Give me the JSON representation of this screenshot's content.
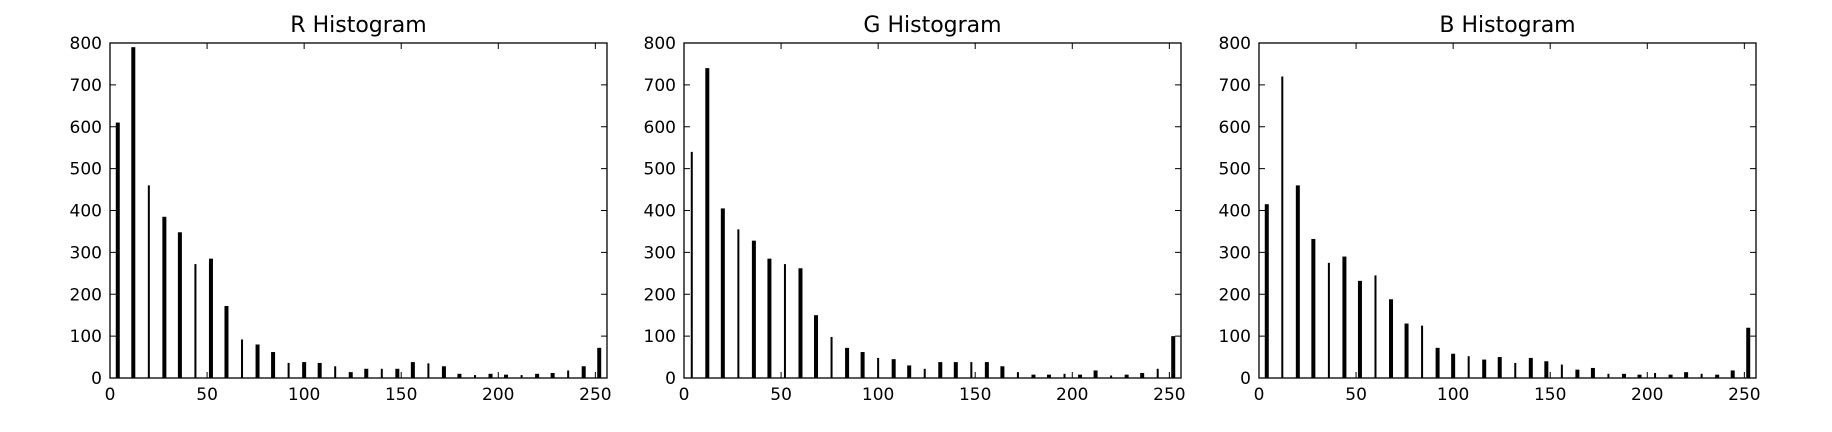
{
  "chart_data": [
    {
      "type": "bar",
      "title": "R Histogram",
      "xlabel": "",
      "ylabel": "",
      "xlim": [
        0,
        256
      ],
      "ylim": [
        0,
        800
      ],
      "xticks": [
        0,
        50,
        100,
        150,
        200,
        250
      ],
      "yticks": [
        0,
        100,
        200,
        300,
        400,
        500,
        600,
        700,
        800
      ],
      "grid": false,
      "x": [
        4,
        12,
        20,
        28,
        36,
        44,
        52,
        60,
        68,
        76,
        84,
        92,
        100,
        108,
        116,
        124,
        132,
        140,
        148,
        156,
        164,
        172,
        180,
        188,
        196,
        204,
        212,
        220,
        228,
        236,
        244,
        252
      ],
      "values": [
        610,
        790,
        460,
        385,
        348,
        272,
        285,
        172,
        92,
        80,
        62,
        36,
        38,
        36,
        28,
        14,
        22,
        22,
        22,
        38,
        35,
        28,
        10,
        7,
        10,
        8,
        7,
        10,
        12,
        18,
        28,
        72
      ],
      "bar_width": [
        2,
        2,
        1,
        2,
        2,
        1,
        2,
        2,
        1,
        2,
        2,
        1,
        2,
        2,
        1,
        2,
        2,
        1,
        2,
        2,
        1,
        2,
        2,
        1,
        2,
        2,
        1,
        2,
        2,
        1,
        2,
        2
      ]
    },
    {
      "type": "bar",
      "title": "G Histogram",
      "xlabel": "",
      "ylabel": "",
      "xlim": [
        0,
        256
      ],
      "ylim": [
        0,
        800
      ],
      "xticks": [
        0,
        50,
        100,
        150,
        200,
        250
      ],
      "yticks": [
        0,
        100,
        200,
        300,
        400,
        500,
        600,
        700,
        800
      ],
      "grid": false,
      "x": [
        4,
        12,
        20,
        28,
        36,
        44,
        52,
        60,
        68,
        76,
        84,
        92,
        100,
        108,
        116,
        124,
        132,
        140,
        148,
        156,
        164,
        172,
        180,
        188,
        196,
        204,
        212,
        220,
        228,
        236,
        244,
        252
      ],
      "values": [
        540,
        740,
        405,
        355,
        328,
        285,
        272,
        262,
        150,
        98,
        72,
        62,
        48,
        45,
        30,
        22,
        38,
        38,
        38,
        38,
        28,
        14,
        8,
        8,
        10,
        8,
        18,
        6,
        8,
        12,
        22,
        100
      ],
      "bar_width": [
        1,
        2,
        2,
        1,
        2,
        2,
        1,
        2,
        2,
        1,
        2,
        2,
        1,
        2,
        2,
        1,
        2,
        2,
        1,
        2,
        2,
        1,
        2,
        2,
        1,
        2,
        2,
        1,
        2,
        2,
        1,
        2
      ]
    },
    {
      "type": "bar",
      "title": "B Histogram",
      "xlabel": "",
      "ylabel": "",
      "xlim": [
        0,
        256
      ],
      "ylim": [
        0,
        800
      ],
      "xticks": [
        0,
        50,
        100,
        150,
        200,
        250
      ],
      "yticks": [
        0,
        100,
        200,
        300,
        400,
        500,
        600,
        700,
        800
      ],
      "grid": false,
      "x": [
        4,
        12,
        20,
        28,
        36,
        44,
        52,
        60,
        68,
        76,
        84,
        92,
        100,
        108,
        116,
        124,
        132,
        140,
        148,
        156,
        164,
        172,
        180,
        188,
        196,
        204,
        212,
        220,
        228,
        236,
        244,
        252
      ],
      "values": [
        415,
        720,
        460,
        332,
        275,
        290,
        232,
        245,
        188,
        130,
        125,
        72,
        58,
        52,
        44,
        50,
        36,
        48,
        40,
        32,
        20,
        24,
        10,
        10,
        8,
        12,
        8,
        14,
        10,
        8,
        18,
        120
      ],
      "bar_width": [
        2,
        1,
        2,
        2,
        1,
        2,
        2,
        1,
        2,
        2,
        1,
        2,
        2,
        1,
        2,
        2,
        1,
        2,
        2,
        1,
        2,
        2,
        1,
        2,
        2,
        1,
        2,
        2,
        1,
        2,
        2,
        2
      ]
    }
  ]
}
